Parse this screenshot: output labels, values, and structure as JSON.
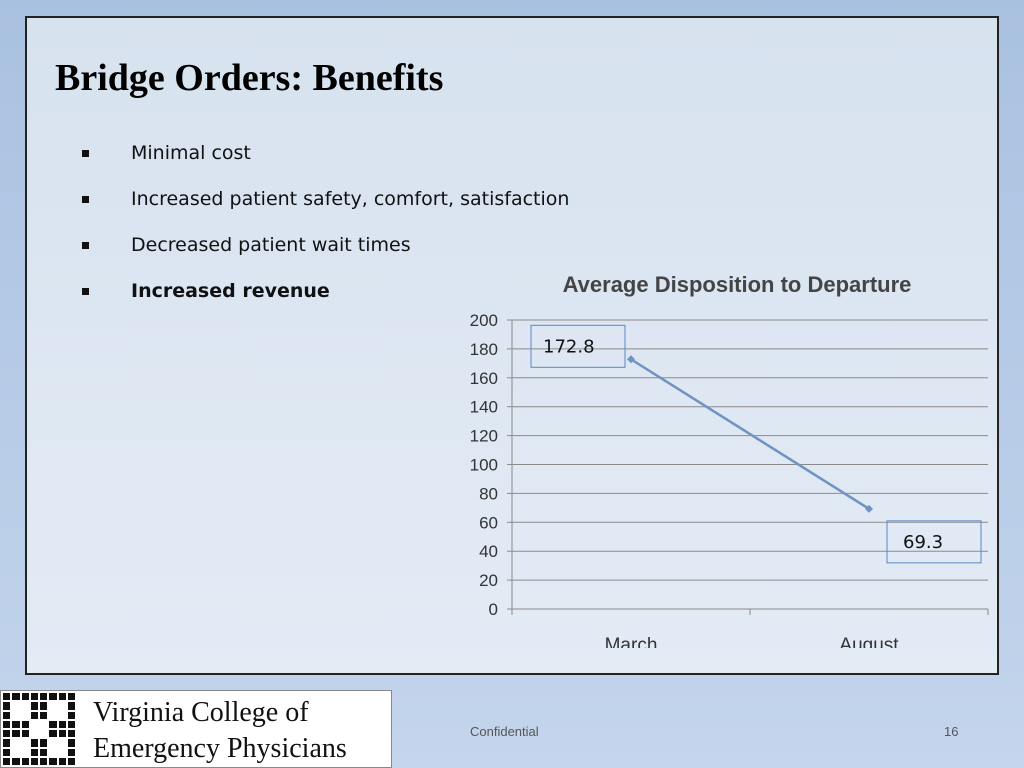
{
  "slide": {
    "title": "Bridge Orders: Benefits",
    "bullets": [
      {
        "text": "Minimal cost",
        "bold": false
      },
      {
        "text": "Increased patient safety, comfort, satisfaction",
        "bold": false
      },
      {
        "text": "Decreased patient wait times",
        "bold": false
      },
      {
        "text": "Increased revenue",
        "bold": true
      }
    ]
  },
  "footer": {
    "logo_line1": "Virginia College of",
    "logo_line2": "Emergency Physicians",
    "confidential": "Confidential",
    "page_number": "16"
  },
  "chart_data": {
    "type": "line",
    "title": "Average Disposition to Departure",
    "categories": [
      "March",
      "August"
    ],
    "series": [
      {
        "values": [
          172.8,
          69.3
        ],
        "color": "#6f93c3"
      }
    ],
    "data_labels": [
      "172.8",
      "69.3"
    ],
    "ylim": [
      0,
      200
    ],
    "yticks": [
      0,
      20,
      40,
      60,
      80,
      100,
      120,
      140,
      160,
      180,
      200
    ],
    "grid": true,
    "legend": "none"
  }
}
